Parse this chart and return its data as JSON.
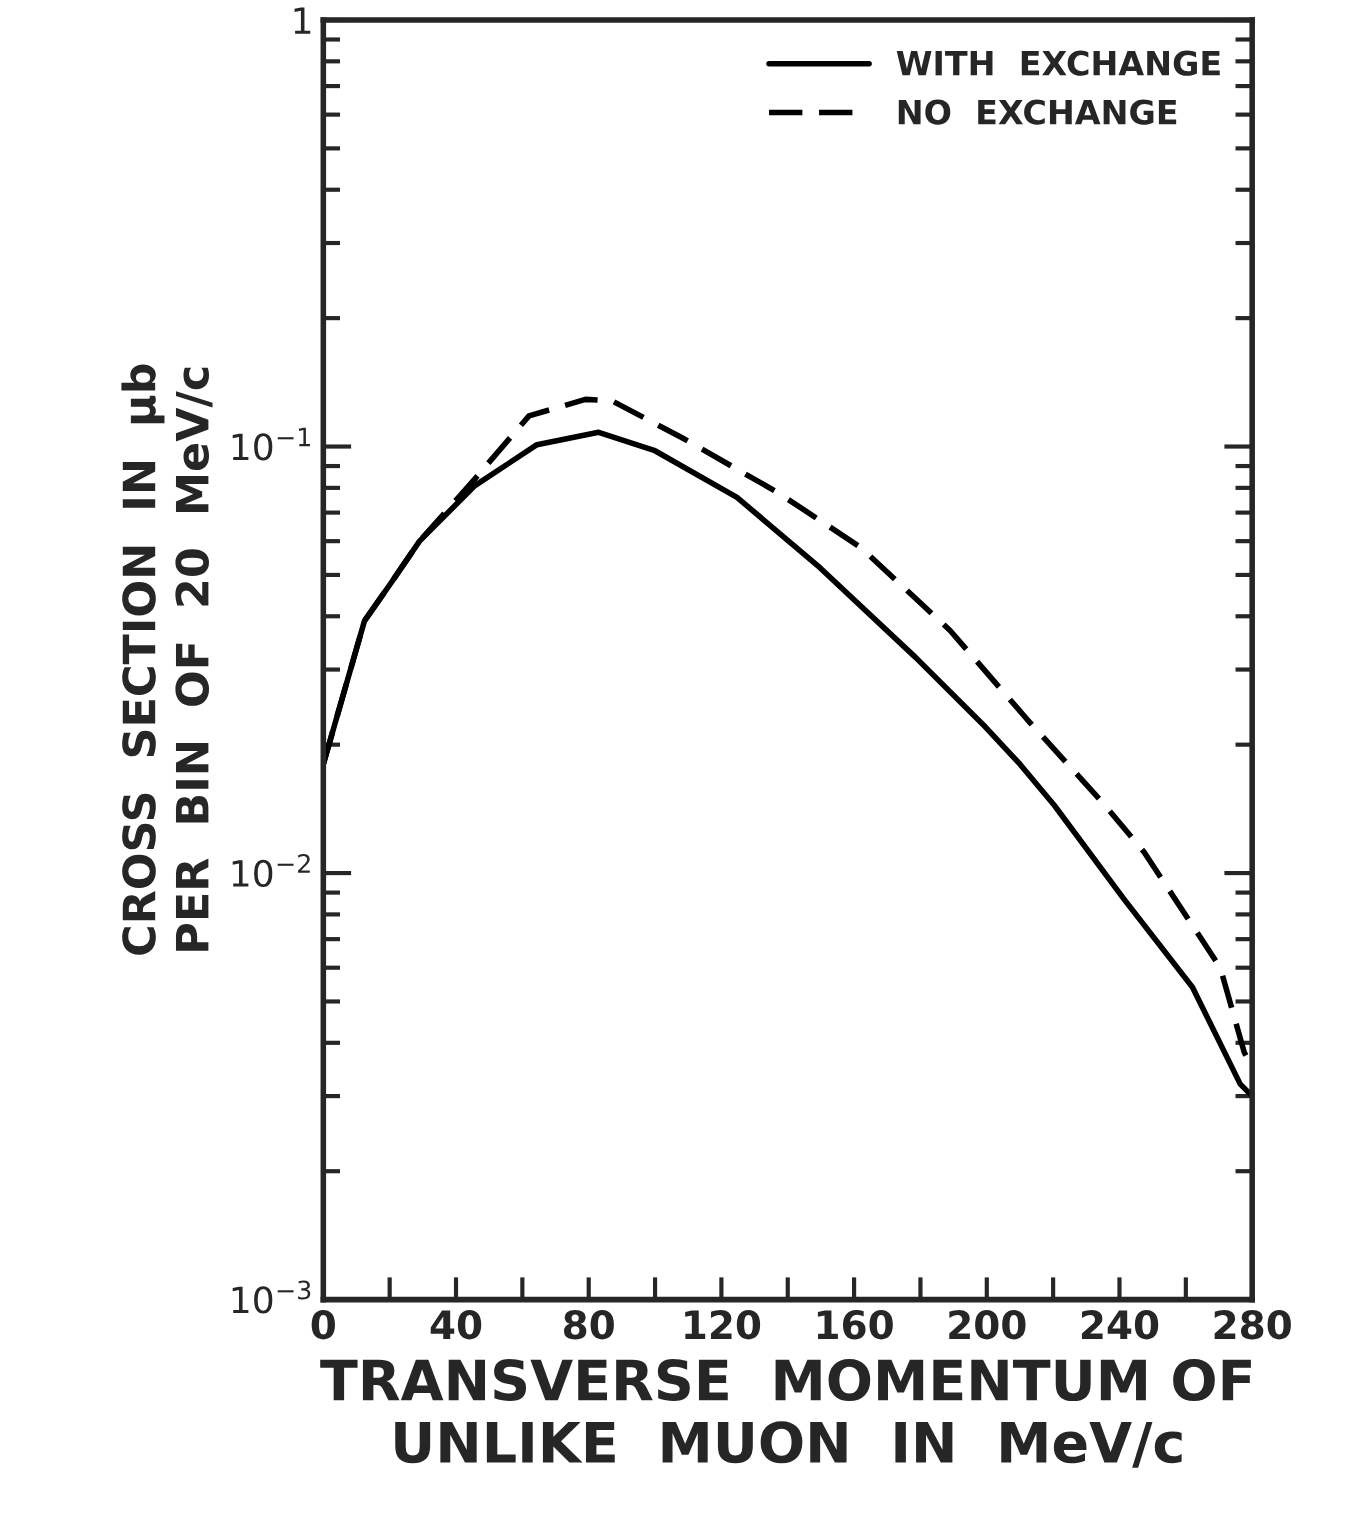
{
  "chart_data": {
    "type": "line",
    "xlabel": "TRANSVERSE  MOMENTUM OF\nUNLIKE  MUON  IN  MeV/c",
    "ylabel": "CROSS  SECTION  IN  μb\nPER  BIN  OF  20  MeV/c",
    "series": [
      {
        "name": "WITH  EXCHANGE",
        "color": "#000000",
        "line_style": "solid",
        "x": [
          0,
          12.4,
          20.5,
          29,
          45.7,
          64.4,
          83,
          99.7,
          124.7,
          149.7,
          178.6,
          199.6,
          210,
          220.4,
          241.3,
          262,
          276.4,
          280
        ],
        "values": [
          0.018,
          0.039,
          0.048,
          0.06,
          0.081,
          0.101,
          0.108,
          0.098,
          0.076,
          0.052,
          0.032,
          0.022,
          0.018,
          0.0144,
          0.0087,
          0.0054,
          0.0032,
          0.003
        ]
      },
      {
        "name": "NO  EXCHANGE",
        "color": "#000000",
        "line_style": "dashed",
        "x": [
          0,
          12.4,
          20.5,
          29,
          45.7,
          62,
          79,
          87,
          108,
          137,
          162,
          189,
          212,
          235,
          247.4,
          270.4,
          277.6,
          280
        ],
        "values": [
          0.018,
          0.039,
          0.048,
          0.06,
          0.084,
          0.118,
          0.129,
          0.128,
          0.105,
          0.078,
          0.058,
          0.037,
          0.023,
          0.0146,
          0.0112,
          0.006,
          0.0038,
          0.0035
        ]
      }
    ],
    "log": "y",
    "xlim": [
      0,
      280
    ],
    "xticks": [
      0,
      {
        "value": 20,
        "label": null
      },
      40,
      {
        "value": 60,
        "label": null
      },
      80,
      {
        "value": 100,
        "label": null
      },
      120,
      {
        "value": 140,
        "label": null
      },
      160,
      {
        "value": 180,
        "label": null
      },
      200,
      {
        "value": 220,
        "label": null
      },
      240,
      {
        "value": 260,
        "label": null
      },
      280
    ],
    "ylim": [
      0.001,
      1
    ],
    "yticks": [
      {
        "value": 0.001,
        "label": "10$^{−3}$"
      },
      {
        "value": 0.01,
        "label": "10$^{−2}$"
      },
      {
        "value": 0.1,
        "label": "10$^{−1}$"
      },
      1
    ],
    "legend": "top right",
    "grid": false
  }
}
